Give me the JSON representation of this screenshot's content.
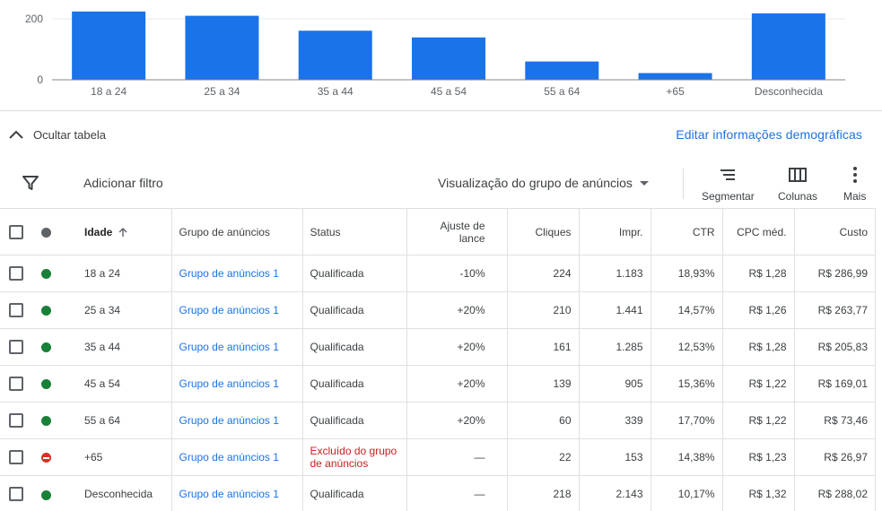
{
  "chart_data": {
    "type": "bar",
    "categories": [
      "18 a 24",
      "25 a 34",
      "35 a 44",
      "45 a 54",
      "55 a 64",
      "+65",
      "Desconhecida"
    ],
    "values": [
      224,
      210,
      161,
      139,
      60,
      22,
      218
    ],
    "yticks": [
      "0",
      "200"
    ],
    "ylim": [
      0,
      225
    ],
    "color": "#1a73e8",
    "grid": true
  },
  "table_toggle": {
    "hide_label": "Ocultar tabela",
    "edit_link": "Editar informações demográficas"
  },
  "toolbar": {
    "add_filter": "Adicionar filtro",
    "view_label": "Visualização do grupo de anúncios",
    "segment": "Segmentar",
    "columns": "Colunas",
    "more": "Mais"
  },
  "table": {
    "headers": {
      "age": "Idade",
      "ad_group": "Grupo de anúncios",
      "status": "Status",
      "bid_adj": "Ajuste de lance",
      "clicks": "Cliques",
      "impr": "Impr.",
      "ctr": "CTR",
      "cpc": "CPC méd.",
      "cost": "Custo"
    },
    "rows": [
      {
        "status_color": "#188038",
        "age": "18 a 24",
        "ad_group": "Grupo de anúncios 1",
        "status": "Qualificada",
        "bid_adj": "-10%",
        "clicks": "224",
        "impr": "1.183",
        "ctr": "18,93%",
        "cpc": "R$ 1,28",
        "cost": "R$ 286,99"
      },
      {
        "status_color": "#188038",
        "age": "25 a 34",
        "ad_group": "Grupo de anúncios 1",
        "status": "Qualificada",
        "bid_adj": "+20%",
        "clicks": "210",
        "impr": "1.441",
        "ctr": "14,57%",
        "cpc": "R$ 1,26",
        "cost": "R$ 263,77"
      },
      {
        "status_color": "#188038",
        "age": "35 a 44",
        "ad_group": "Grupo de anúncios 1",
        "status": "Qualificada",
        "bid_adj": "+20%",
        "clicks": "161",
        "impr": "1.285",
        "ctr": "12,53%",
        "cpc": "R$ 1,28",
        "cost": "R$ 205,83"
      },
      {
        "status_color": "#188038",
        "age": "45 a 54",
        "ad_group": "Grupo de anúncios 1",
        "status": "Qualificada",
        "bid_adj": "+20%",
        "clicks": "139",
        "impr": "905",
        "ctr": "15,36%",
        "cpc": "R$ 1,22",
        "cost": "R$ 169,01"
      },
      {
        "status_color": "#188038",
        "age": "55 a 64",
        "ad_group": "Grupo de anúncios 1",
        "status": "Qualificada",
        "bid_adj": "+20%",
        "clicks": "60",
        "impr": "339",
        "ctr": "17,70%",
        "cpc": "R$ 1,22",
        "cost": "R$ 73,46"
      },
      {
        "status_color": "#d93025",
        "excluded": true,
        "age": "+65",
        "ad_group": "Grupo de anúncios 1",
        "status": "Excluído do grupo de anúncios",
        "bid_adj": "—",
        "clicks": "22",
        "impr": "153",
        "ctr": "14,38%",
        "cpc": "R$ 1,23",
        "cost": "R$ 26,97"
      },
      {
        "status_color": "#188038",
        "age": "Desconhecida",
        "ad_group": "Grupo de anúncios 1",
        "status": "Qualificada",
        "bid_adj": "—",
        "clicks": "218",
        "impr": "2.143",
        "ctr": "10,17%",
        "cpc": "R$ 1,32",
        "cost": "R$ 288,02"
      }
    ]
  }
}
